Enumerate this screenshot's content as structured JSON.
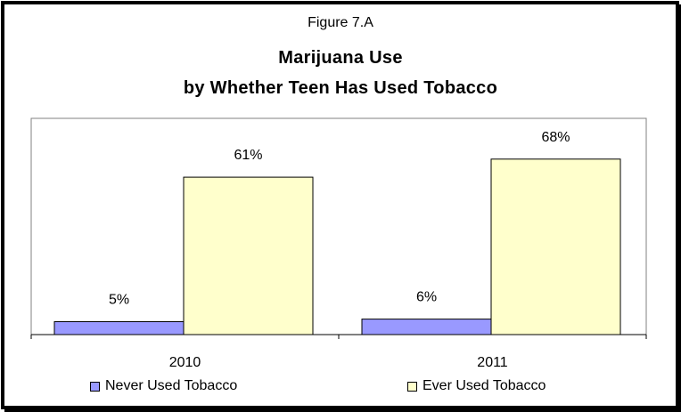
{
  "chart_data": {
    "type": "bar",
    "figure_label": "Figure 7.A",
    "title": "Marijuana Use",
    "subtitle": "by Whether Teen Has Used Tobacco",
    "categories": [
      "2010",
      "2011"
    ],
    "series": [
      {
        "name": "Never Used Tobacco",
        "values": [
          5,
          6
        ],
        "labels": [
          "5%",
          "6%"
        ],
        "color": "#9999ff"
      },
      {
        "name": "Ever Used Tobacco",
        "values": [
          61,
          68
        ],
        "labels": [
          "61%",
          "68%"
        ],
        "color": "#ffffcc"
      }
    ],
    "ylim": [
      0,
      80
    ],
    "grid": false,
    "legend": "bottom"
  }
}
